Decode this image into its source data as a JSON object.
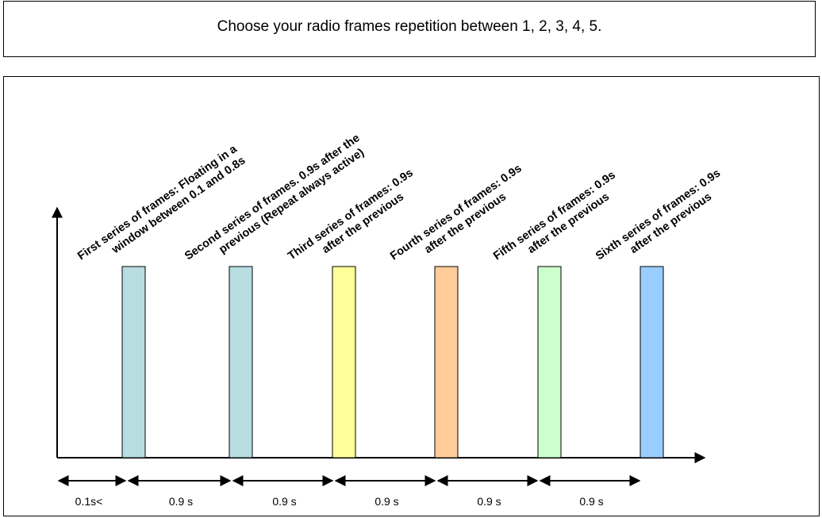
{
  "header": {
    "title": "Choose your radio frames repetition between 1, 2, 3, 4, 5."
  },
  "diagram": {
    "frames": [
      {
        "line1": "First series of frames: Floating in a",
        "line2": "window between 0.1 and 0.8s",
        "color": "#b7dde1"
      },
      {
        "line1": "Second series of frames. 0.9s after the",
        "line2": "previous (Repeat always active)",
        "color": "#b7dde1"
      },
      {
        "line1": "Third series of frames: 0.9s",
        "line2": "after the previous",
        "color": "#ffff99"
      },
      {
        "line1": "Fourth series of frames: 0.9s",
        "line2": "after the previous",
        "color": "#ffcc99"
      },
      {
        "line1": "Fifth series of frames: 0.9s",
        "line2": "after the previous",
        "color": "#ccffcc"
      },
      {
        "line1": "Sixth series of frames: 0.9s",
        "line2": "after the previous",
        "color": "#99ccff"
      }
    ],
    "durations": [
      "0.1s<",
      "0.9 s",
      "0.9 s",
      "0.9 s",
      "0.9 s",
      "0.9 s"
    ]
  }
}
